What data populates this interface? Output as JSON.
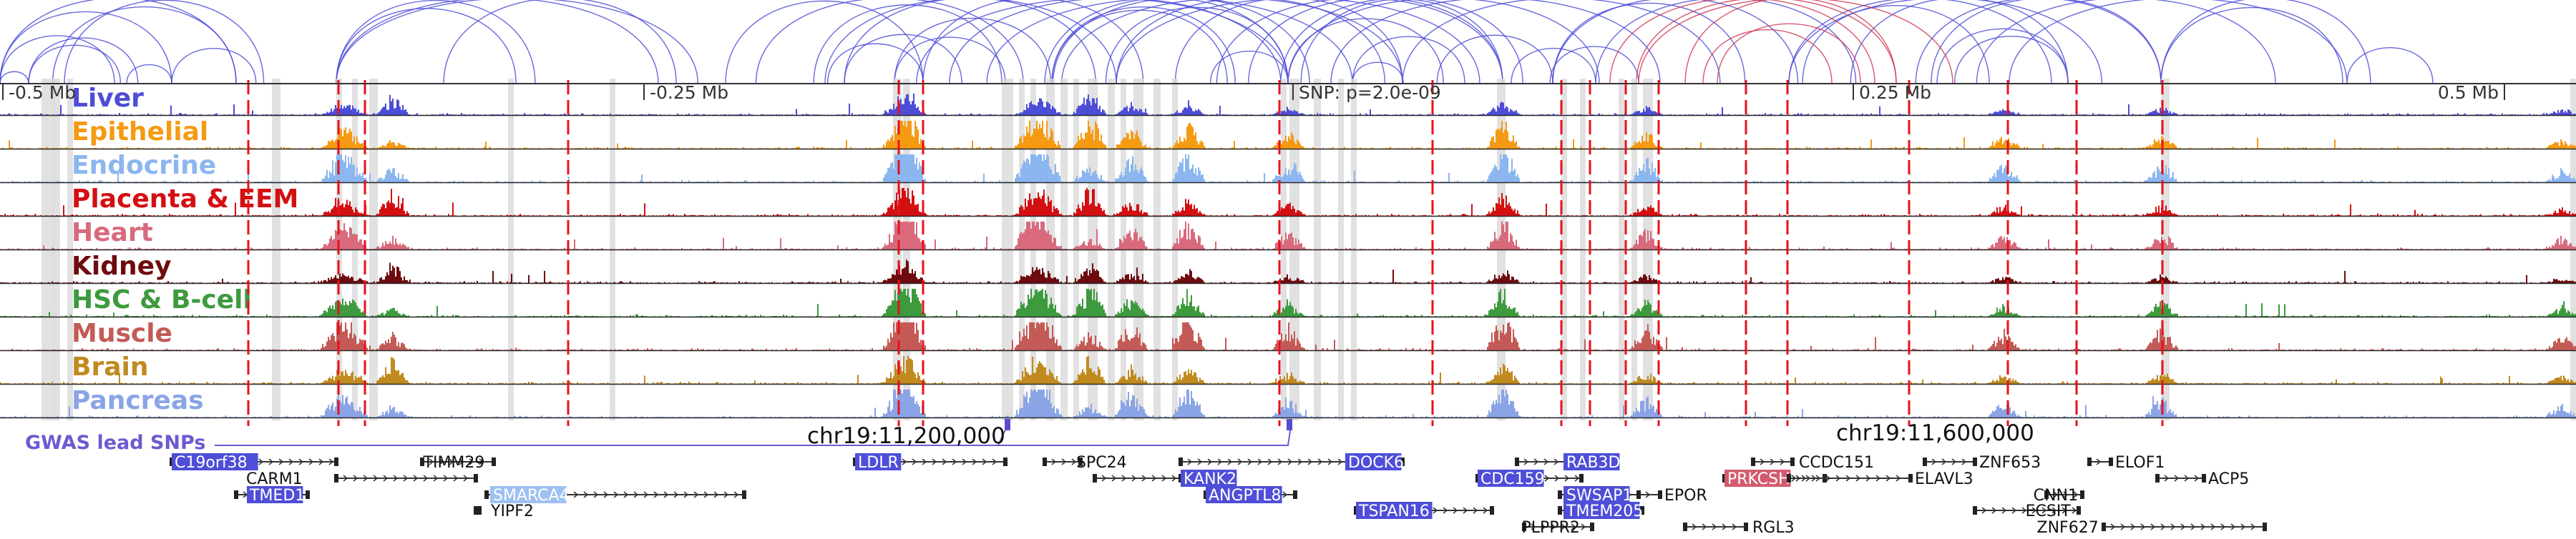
{
  "ruler": {
    "ticks": [
      {
        "label": "-0.5 Mb",
        "pos": "start"
      },
      {
        "label": "-0.25 Mb",
        "pos": "q1"
      },
      {
        "label": "SNP: p=2.0e-09",
        "pos": "mid"
      },
      {
        "label": "0.25 Mb",
        "pos": "q3"
      },
      {
        "label": "0.5 Mb",
        "pos": "end"
      }
    ]
  },
  "tracks": [
    {
      "label": "Liver",
      "color": "#4d4dd8"
    },
    {
      "label": "Epithelial",
      "color": "#f59a12"
    },
    {
      "label": "Endocrine",
      "color": "#8bb6f0"
    },
    {
      "label": "Placenta & EEM",
      "color": "#d40f12"
    },
    {
      "label": "Heart",
      "color": "#d86a7c"
    },
    {
      "label": "Kidney",
      "color": "#6e0b0e"
    },
    {
      "label": "HSC & B-cell",
      "color": "#3d9a3d"
    },
    {
      "label": "Muscle",
      "color": "#c45a56"
    },
    {
      "label": "Brain",
      "color": "#c08a1f"
    },
    {
      "label": "Pancreas",
      "color": "#8aa4e6"
    }
  ],
  "gwas": {
    "label": "GWAS lead SNPs",
    "coord_left": "chr19:11,200,000",
    "coord_right": "chr19:11,600,000"
  },
  "genes": [
    {
      "name": "C19orf38",
      "row": 0,
      "highlight": "blue"
    },
    {
      "name": "TIMM29",
      "row": 0,
      "highlight": "none"
    },
    {
      "name": "CARM1",
      "row": 1,
      "highlight": "none"
    },
    {
      "name": "TMED1",
      "row": 2,
      "highlight": "blue"
    },
    {
      "name": "SMARCA4",
      "row": 2,
      "highlight": "light"
    },
    {
      "name": "YIPF2",
      "row": 3,
      "highlight": "none"
    },
    {
      "name": "LDLR",
      "row": 0,
      "highlight": "blue"
    },
    {
      "name": "SPC24",
      "row": 0,
      "highlight": "none"
    },
    {
      "name": "KANK2",
      "row": 1,
      "highlight": "blue"
    },
    {
      "name": "ANGPTL8",
      "row": 2,
      "highlight": "blue"
    },
    {
      "name": "DOCK6",
      "row": 0,
      "highlight": "blue"
    },
    {
      "name": "TSPAN16",
      "row": 3,
      "highlight": "blue"
    },
    {
      "name": "RAB3D",
      "row": 0,
      "highlight": "blue"
    },
    {
      "name": "CDC159",
      "row": 1,
      "highlight": "blue"
    },
    {
      "name": "SWSAP1",
      "row": 2,
      "highlight": "blue"
    },
    {
      "name": "EPOR",
      "row": 2,
      "highlight": "none"
    },
    {
      "name": "TMEM205",
      "row": 3,
      "highlight": "blue"
    },
    {
      "name": "PLPPR2",
      "row": 4,
      "highlight": "none"
    },
    {
      "name": "PRKCSH",
      "row": 1,
      "highlight": "red"
    },
    {
      "name": "CCDC151",
      "row": 0,
      "highlight": "none"
    },
    {
      "name": "ELAVL3",
      "row": 1,
      "highlight": "none"
    },
    {
      "name": "RGL3",
      "row": 4,
      "highlight": "none"
    },
    {
      "name": "ZNF653",
      "row": 0,
      "highlight": "none"
    },
    {
      "name": "CNN1",
      "row": 2,
      "highlight": "none"
    },
    {
      "name": "ECSIT",
      "row": 3,
      "highlight": "none"
    },
    {
      "name": "ZNF627",
      "row": 4,
      "highlight": "none"
    },
    {
      "name": "ELOF1",
      "row": 0,
      "highlight": "none"
    },
    {
      "name": "ACP5",
      "row": 1,
      "highlight": "none"
    }
  ]
}
